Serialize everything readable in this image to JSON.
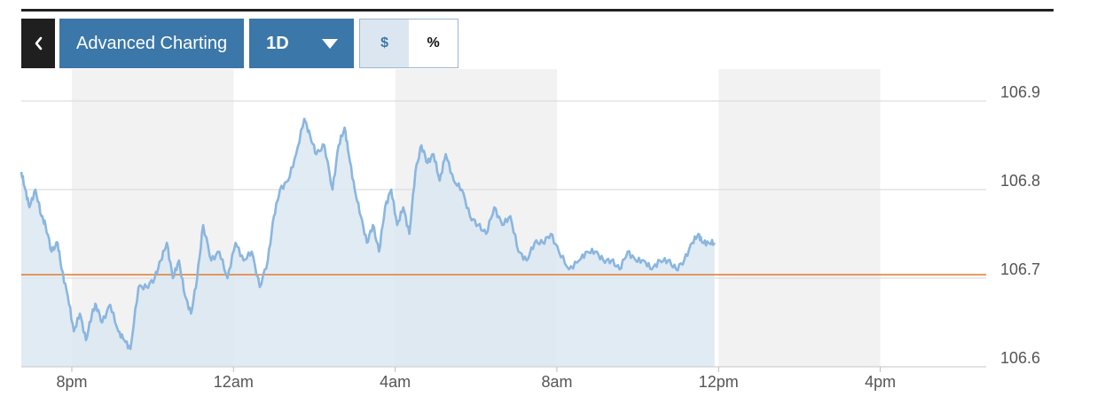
{
  "toolbar": {
    "back_icon": "chevron-left-icon",
    "advanced_label": "Advanced Charting",
    "range_label": "1D",
    "range_icon": "caret-down-icon",
    "dollar_label": "$",
    "percent_label": "%"
  },
  "colors": {
    "accent": "#3b77a8",
    "line": "#8ab6df",
    "fill": "#dce7f1",
    "reference": "#e07a2e"
  },
  "chart_data": {
    "type": "area",
    "title": "",
    "xlabel": "",
    "ylabel": "",
    "ylim": [
      106.6,
      106.9
    ],
    "yticks": [
      "106.9",
      "106.8",
      "106.7",
      "106.6"
    ],
    "xticks": [
      "8pm",
      "12am",
      "4am",
      "8am",
      "12pm",
      "4pm"
    ],
    "reference_line": 106.704,
    "grid": true,
    "series": [
      {
        "name": "",
        "x_hours": [
          0.0,
          0.1,
          0.2,
          0.35,
          0.5,
          0.6,
          0.75,
          0.9,
          1.0,
          1.15,
          1.3,
          1.45,
          1.6,
          1.75,
          1.85,
          2.0,
          2.2,
          2.4,
          2.55,
          2.7,
          2.9,
          3.1,
          3.3,
          3.45,
          3.6,
          3.75,
          3.9,
          4.05,
          4.2,
          4.35,
          4.5,
          4.7,
          4.9,
          5.1,
          5.3,
          5.5,
          5.7,
          5.9,
          6.1,
          6.25,
          6.4,
          6.6,
          6.8,
          7.0,
          7.15,
          7.3,
          7.5,
          7.7,
          7.85,
          8.0,
          8.1,
          8.25,
          8.4,
          8.55,
          8.7,
          8.85,
          9.0,
          9.15,
          9.3,
          9.45,
          9.6,
          9.75,
          9.9,
          10.05,
          10.2,
          10.35,
          10.5,
          10.7,
          10.9,
          11.1,
          11.3,
          11.5,
          11.7,
          11.9,
          12.1,
          12.3,
          12.5,
          12.7,
          12.9,
          13.1,
          13.3,
          13.55,
          13.8,
          14.0,
          14.2,
          14.4,
          14.6,
          14.8,
          15.0,
          15.2,
          15.4,
          15.6,
          15.8,
          16.0,
          16.2,
          16.4,
          16.6,
          16.75,
          16.85,
          17.0,
          17.15
        ],
        "values": [
          106.82,
          106.8,
          106.78,
          106.8,
          106.77,
          106.76,
          106.73,
          106.74,
          106.71,
          106.68,
          106.64,
          106.66,
          106.63,
          106.66,
          106.67,
          106.65,
          106.67,
          106.64,
          106.63,
          106.62,
          106.69,
          106.69,
          106.7,
          106.72,
          106.74,
          106.7,
          106.72,
          106.68,
          106.66,
          106.7,
          106.76,
          106.72,
          106.73,
          106.7,
          106.74,
          106.72,
          106.73,
          106.69,
          106.72,
          106.77,
          106.8,
          106.81,
          106.84,
          106.88,
          106.86,
          106.84,
          106.85,
          106.8,
          106.85,
          106.87,
          106.84,
          106.8,
          106.77,
          106.74,
          106.76,
          106.73,
          106.78,
          106.8,
          106.76,
          106.78,
          106.75,
          106.82,
          106.85,
          106.83,
          106.84,
          106.81,
          106.84,
          106.81,
          106.8,
          106.77,
          106.76,
          106.75,
          106.78,
          106.76,
          106.77,
          106.73,
          106.72,
          106.74,
          106.74,
          106.75,
          106.73,
          106.71,
          106.72,
          106.73,
          106.73,
          106.72,
          106.72,
          106.71,
          106.73,
          106.72,
          106.72,
          106.71,
          106.72,
          106.72,
          106.71,
          106.72,
          106.74,
          106.75,
          106.74,
          106.74,
          106.74
        ]
      }
    ]
  }
}
